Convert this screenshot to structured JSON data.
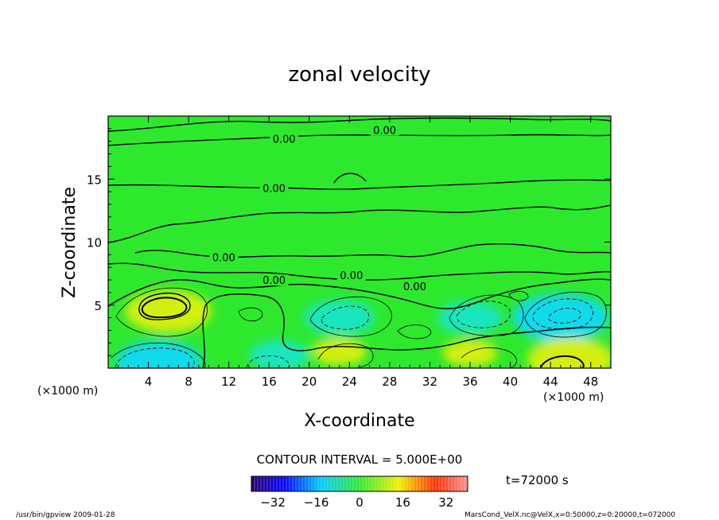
{
  "chart_data": {
    "type": "contour",
    "title": "zonal velocity",
    "xlabel": "X-coordinate",
    "ylabel": "Z-coordinate",
    "x_unit_left": "(×1000 m)",
    "x_unit_right": "(×1000 m)",
    "x_ticks": [
      "4",
      "8",
      "12",
      "16",
      "20",
      "24",
      "28",
      "32",
      "36",
      "40",
      "44",
      "48"
    ],
    "y_ticks": [
      "5",
      "10",
      "15"
    ],
    "xlim": [
      0,
      50
    ],
    "ylim": [
      0,
      20
    ],
    "contour_labels": [
      "0.00",
      "0.00",
      "0.00",
      "0.00",
      "0.00",
      "0.00",
      "0.00"
    ],
    "contour_interval": "CONTOUR INTERVAL = 5.000E+00",
    "colorbar_ticks": [
      "−32",
      "−16",
      "0",
      "16",
      "32"
    ],
    "colorbar_range": [
      -40,
      40
    ],
    "time_label": "t=72000 s",
    "footer_left": "/usr/bin/gpview   2009-01-28",
    "footer_right": "MarsCond_VelX.nc@VelX,x=0:50000,z=0:20000,t=072000",
    "features": [
      {
        "kind": "positive",
        "x": 6,
        "z": 4.5,
        "value": 10
      },
      {
        "kind": "negative",
        "x": 5,
        "z": 0.5,
        "value": -10
      },
      {
        "kind": "negative",
        "x": 17,
        "z": 1,
        "value": -5
      },
      {
        "kind": "negative",
        "x": 23,
        "z": 4,
        "value": -7
      },
      {
        "kind": "negative",
        "x": 36,
        "z": 4,
        "value": -6
      },
      {
        "kind": "negative",
        "x": 45,
        "z": 4,
        "value": -12
      },
      {
        "kind": "positive",
        "x": 46,
        "z": 0.7,
        "value": 10
      },
      {
        "kind": "positive",
        "x": 23,
        "z": 1.3,
        "value": 4
      },
      {
        "kind": "positive",
        "x": 36,
        "z": 1.2,
        "value": 4
      }
    ],
    "colors": {
      "background_field": "#2ee82e",
      "positive": "#e6f00a",
      "negative": "#16e6cf",
      "strong_negative": "#0fd8ff"
    }
  }
}
